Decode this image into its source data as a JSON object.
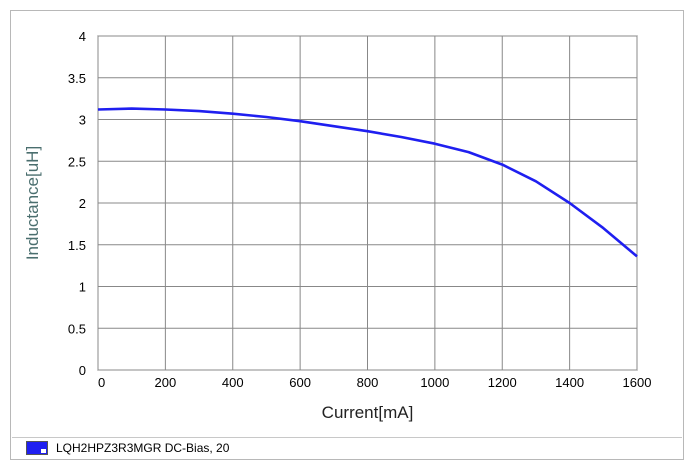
{
  "chart_data": {
    "type": "line",
    "title": "",
    "xlabel": "Current[mA]",
    "ylabel": "Inductance[uH]",
    "xlim": [
      0,
      1600
    ],
    "ylim": [
      0,
      4
    ],
    "xticks": [
      "0",
      "200",
      "400",
      "600",
      "800",
      "1000",
      "1200",
      "1400",
      "1600"
    ],
    "yticks": [
      "0",
      "0.5",
      "1",
      "1.5",
      "2",
      "2.5",
      "3",
      "3.5",
      "4"
    ],
    "grid": true,
    "legend_position": "bottom",
    "series": [
      {
        "name": "LQH2HPZ3R3MGR  DC-Bias, 20",
        "color": "#1f1ff0",
        "x": [
          0,
          100,
          200,
          300,
          400,
          500,
          600,
          700,
          800,
          900,
          1000,
          1100,
          1200,
          1300,
          1400,
          1500,
          1600
        ],
        "y": [
          3.12,
          3.13,
          3.12,
          3.1,
          3.07,
          3.03,
          2.98,
          2.92,
          2.86,
          2.79,
          2.71,
          2.61,
          2.46,
          2.26,
          2.0,
          1.7,
          1.36
        ]
      }
    ]
  }
}
